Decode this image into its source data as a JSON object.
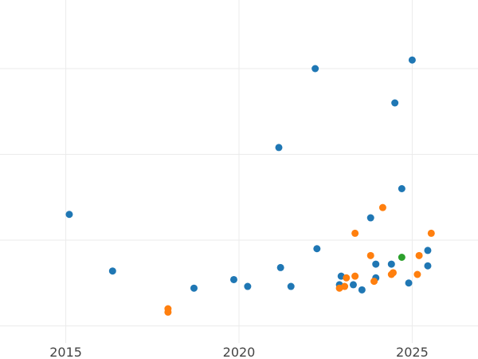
{
  "chart_data": {
    "type": "scatter",
    "title": "",
    "xlabel": "",
    "ylabel": "",
    "grid": true,
    "legend": "none",
    "xlim": [
      2013.1,
      2026.9
    ],
    "ylim": [
      0,
      1
    ],
    "x_ticks": [
      2015,
      2020,
      2025
    ],
    "x_tick_labels": [
      "2015",
      "2020",
      "2025"
    ],
    "y_gridlines": [
      0.05,
      0.3,
      0.55,
      0.8,
      1.05
    ],
    "series": [
      {
        "color": "#1f77b4",
        "points": [
          {
            "x": 2015.1,
            "y": 0.375
          },
          {
            "x": 2016.35,
            "y": 0.21
          },
          {
            "x": 2018.7,
            "y": 0.16
          },
          {
            "x": 2019.85,
            "y": 0.185
          },
          {
            "x": 2020.25,
            "y": 0.165
          },
          {
            "x": 2021.15,
            "y": 0.57
          },
          {
            "x": 2021.2,
            "y": 0.22
          },
          {
            "x": 2021.5,
            "y": 0.165
          },
          {
            "x": 2022.2,
            "y": 0.8
          },
          {
            "x": 2022.25,
            "y": 0.275
          },
          {
            "x": 2022.95,
            "y": 0.195
          },
          {
            "x": 2022.9,
            "y": 0.17
          },
          {
            "x": 2023.3,
            "y": 0.17
          },
          {
            "x": 2023.55,
            "y": 0.155
          },
          {
            "x": 2023.8,
            "y": 0.365
          },
          {
            "x": 2023.95,
            "y": 0.23
          },
          {
            "x": 2023.95,
            "y": 0.19
          },
          {
            "x": 2024.4,
            "y": 0.23
          },
          {
            "x": 2024.5,
            "y": 0.7
          },
          {
            "x": 2024.7,
            "y": 0.45
          },
          {
            "x": 2024.9,
            "y": 0.175
          },
          {
            "x": 2025.0,
            "y": 0.825
          },
          {
            "x": 2025.45,
            "y": 0.27
          },
          {
            "x": 2025.45,
            "y": 0.225
          }
        ]
      },
      {
        "color": "#ff7f0e",
        "points": [
          {
            "x": 2017.95,
            "y": 0.1
          },
          {
            "x": 2017.95,
            "y": 0.09
          },
          {
            "x": 2022.9,
            "y": 0.16
          },
          {
            "x": 2023.05,
            "y": 0.165
          },
          {
            "x": 2023.1,
            "y": 0.19
          },
          {
            "x": 2023.35,
            "y": 0.195
          },
          {
            "x": 2023.35,
            "y": 0.32
          },
          {
            "x": 2023.8,
            "y": 0.255
          },
          {
            "x": 2023.9,
            "y": 0.18
          },
          {
            "x": 2024.15,
            "y": 0.395
          },
          {
            "x": 2024.4,
            "y": 0.2
          },
          {
            "x": 2024.45,
            "y": 0.205
          },
          {
            "x": 2025.15,
            "y": 0.2
          },
          {
            "x": 2025.2,
            "y": 0.255
          },
          {
            "x": 2025.55,
            "y": 0.32
          }
        ]
      },
      {
        "color": "#2ca02c",
        "points": [
          {
            "x": 2024.7,
            "y": 0.25
          }
        ]
      }
    ]
  }
}
